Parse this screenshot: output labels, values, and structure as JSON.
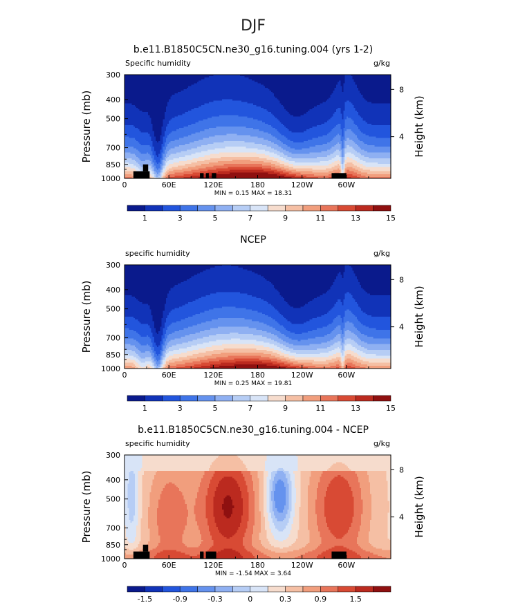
{
  "page_title": "DJF",
  "colorbar_palettes": {
    "humidity": [
      "#0a1a8c",
      "#1133b8",
      "#2255dd",
      "#3f74e8",
      "#6592ee",
      "#8fb0f2",
      "#b6cdf5",
      "#d8e4f7",
      "#f6dccd",
      "#f5bfa4",
      "#f19e7d",
      "#e8755a",
      "#d84a34",
      "#bb2a1f",
      "#8f1010"
    ],
    "difference": [
      "#0a1a8c",
      "#1133b8",
      "#2255dd",
      "#3f74e8",
      "#6592ee",
      "#8fb0f2",
      "#b6cdf5",
      "#d8e4f7",
      "#f6dccd",
      "#f5bfa4",
      "#f19e7d",
      "#e8755a",
      "#d84a34",
      "#bb2a1f",
      "#8f1010"
    ]
  },
  "chart_data": [
    {
      "type": "heatmap",
      "title": "b.e11.B1850C5CN.ne30_g16.tuning.004 (yrs 1-2)",
      "left_label": "Specific humidity",
      "right_label": "g/kg",
      "ylabel": "Pressure (mb)",
      "ylabel_right": "Height (km)",
      "x_ticks": [
        "0",
        "60E",
        "120E",
        "180",
        "120W",
        "60W"
      ],
      "y_ticks": [
        "300",
        "400",
        "500",
        "700",
        "850",
        "1000"
      ],
      "y_ticks_right": [
        "8",
        "4"
      ],
      "stats": "MIN =    0.15   MAX =   18.31",
      "colorbar_labels": [
        "1",
        "3",
        "5",
        "7",
        "9",
        "11",
        "13",
        "15"
      ],
      "palette": "humidity",
      "terrain": true,
      "terrain_boxes": [
        [
          12,
          34,
          920,
          1000
        ],
        [
          25,
          32,
          850,
          920
        ],
        [
          102,
          107,
          940,
          1000
        ],
        [
          110,
          114,
          940,
          1000
        ],
        [
          118,
          124,
          940,
          1000
        ],
        [
          280,
          300,
          940,
          1000
        ]
      ],
      "nx": 180,
      "ny": 72
    },
    {
      "type": "heatmap",
      "title": "NCEP",
      "left_label": "specific humidity",
      "right_label": "g/kg",
      "ylabel": "Pressure (mb)",
      "ylabel_right": "Height (km)",
      "x_ticks": [
        "0",
        "60E",
        "120E",
        "180",
        "120W",
        "60W"
      ],
      "y_ticks": [
        "300",
        "400",
        "500",
        "700",
        "850",
        "1000"
      ],
      "y_ticks_right": [
        "8",
        "4"
      ],
      "stats": "MIN =    0.25   MAX =   19.81",
      "colorbar_labels": [
        "1",
        "3",
        "5",
        "7",
        "9",
        "11",
        "13",
        "15"
      ],
      "palette": "humidity",
      "terrain": false,
      "terrain_boxes": [],
      "nx": 180,
      "ny": 72
    },
    {
      "type": "heatmap",
      "title": "b.e11.B1850C5CN.ne30_g16.tuning.004 - NCEP",
      "left_label": "specific humidity",
      "right_label": "g/kg",
      "ylabel": "Pressure (mb)",
      "ylabel_right": "Height (km)",
      "x_ticks": [
        "0",
        "60E",
        "120E",
        "180",
        "120W",
        "60W"
      ],
      "y_ticks": [
        "300",
        "400",
        "500",
        "700",
        "850",
        "1000"
      ],
      "y_ticks_right": [
        "8",
        "4"
      ],
      "stats": "MIN =   -1.54   MAX =    3.64",
      "colorbar_labels": [
        "-1.5",
        "-0.9",
        "-0.3",
        "0",
        "0.3",
        "0.9",
        "1.5"
      ],
      "palette": "difference",
      "terrain": true,
      "terrain_boxes": [
        [
          12,
          34,
          920,
          1000
        ],
        [
          25,
          32,
          850,
          920
        ],
        [
          102,
          107,
          920,
          1000
        ],
        [
          110,
          124,
          920,
          1000
        ],
        [
          280,
          300,
          920,
          1000
        ]
      ],
      "nx": 180,
      "ny": 72
    }
  ]
}
